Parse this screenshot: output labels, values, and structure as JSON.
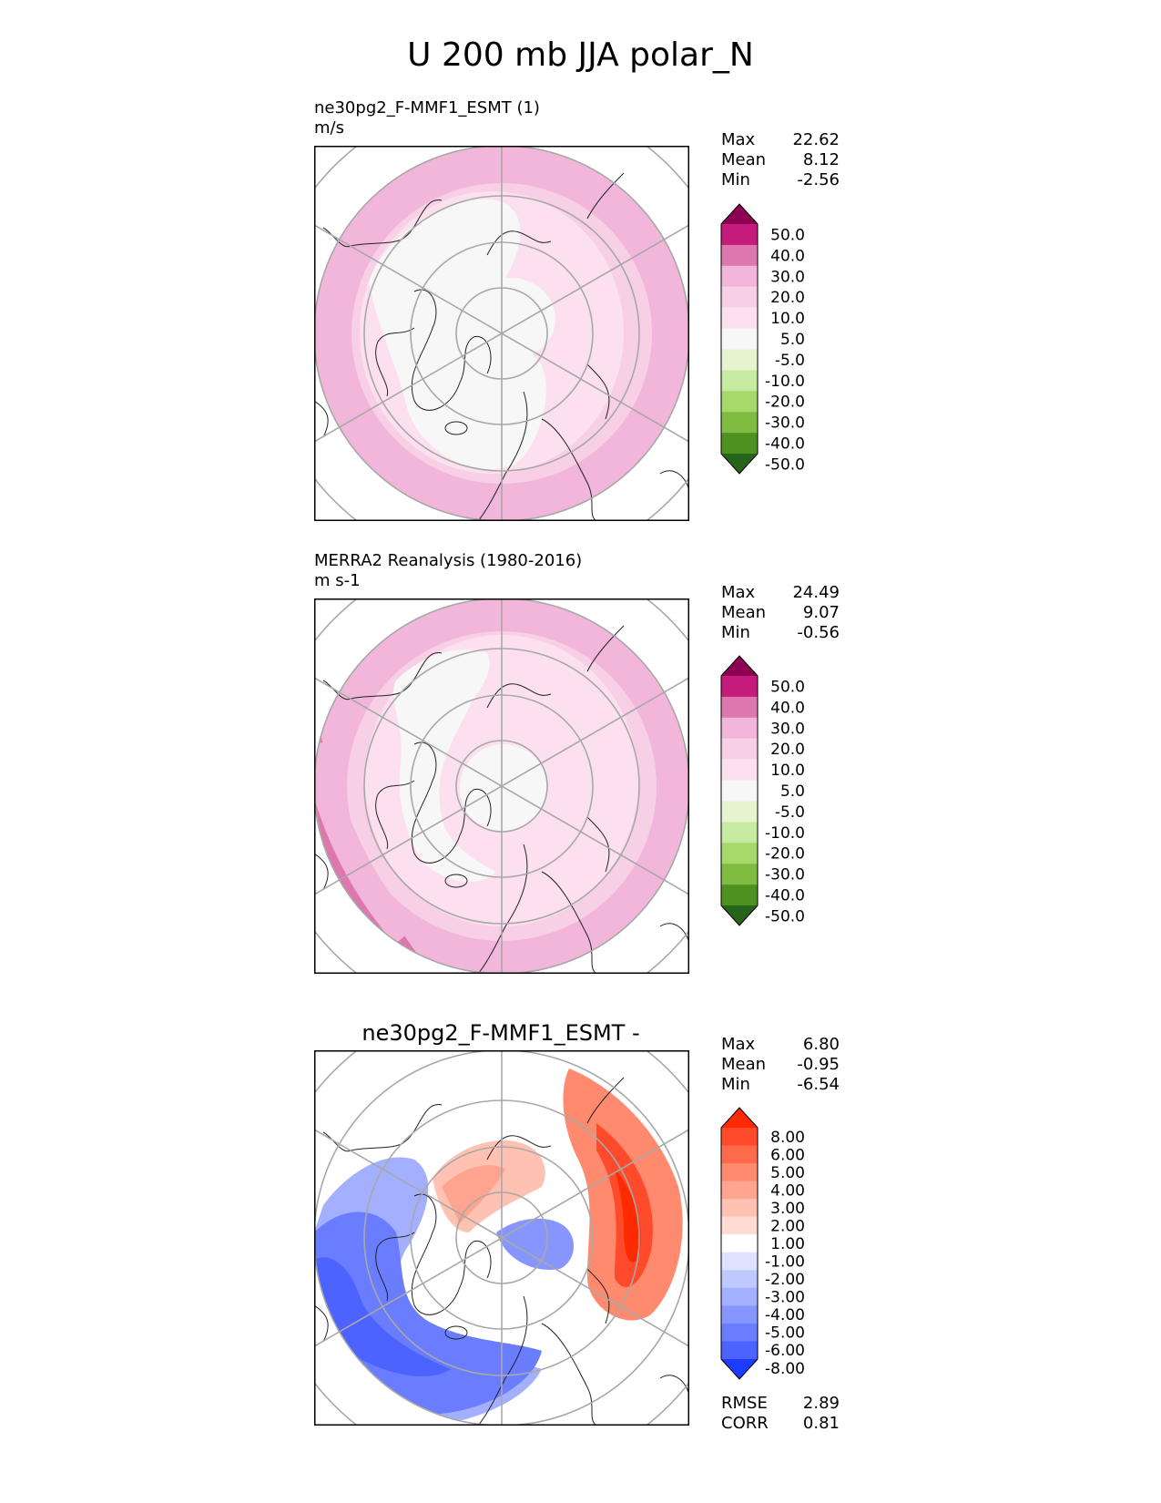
{
  "title": "U 200 mb JJA polar_N",
  "panels": [
    {
      "subtitle": "ne30pg2_F-MMF1_ESMT (1)",
      "units": "m/s",
      "stats": [
        {
          "label": "Max",
          "value": "22.62"
        },
        {
          "label": "Mean",
          "value": "8.12"
        },
        {
          "label": "Min",
          "value": "-2.56"
        }
      ]
    },
    {
      "subtitle": "MERRA2 Reanalysis (1980-2016)",
      "units": "m s-1",
      "stats": [
        {
          "label": "Max",
          "value": "24.49"
        },
        {
          "label": "Mean",
          "value": "9.07"
        },
        {
          "label": "Min",
          "value": "-0.56"
        }
      ]
    },
    {
      "title": "ne30pg2_F-MMF1_ESMT -",
      "stats": [
        {
          "label": "Max",
          "value": "6.80"
        },
        {
          "label": "Mean",
          "value": "-0.95"
        },
        {
          "label": "Min",
          "value": "-6.54"
        }
      ],
      "metrics": [
        {
          "label": "RMSE",
          "value": "2.89"
        },
        {
          "label": "CORR",
          "value": "0.81"
        }
      ]
    }
  ],
  "colorbars": {
    "field": {
      "ticks": [
        "50.0",
        "40.0",
        "30.0",
        "20.0",
        "10.0",
        "5.0",
        "-5.0",
        "-10.0",
        "-20.0",
        "-30.0",
        "-40.0",
        "-50.0"
      ],
      "colors": [
        "#8e0152",
        "#c51b7d",
        "#de77ae",
        "#f1b6da",
        "#f7d0e6",
        "#fde0ef",
        "#f7f7f7",
        "#e6f5d0",
        "#c7e9a0",
        "#a6d96a",
        "#7fbc41",
        "#4d9221",
        "#276419"
      ]
    },
    "diff": {
      "ticks": [
        "8.00",
        "6.00",
        "5.00",
        "4.00",
        "3.00",
        "2.00",
        "1.00",
        "-1.00",
        "-2.00",
        "-3.00",
        "-4.00",
        "-5.00",
        "-6.00",
        "-8.00"
      ],
      "colors": [
        "#ff2a00",
        "#ff4b2b",
        "#ff6a4c",
        "#ff8a6e",
        "#ffa58f",
        "#ffc1b2",
        "#ffdcd3",
        "#ffffff",
        "#dce2ff",
        "#c0c9ff",
        "#a3afff",
        "#8796ff",
        "#6a7cff",
        "#4d63ff",
        "#1a3dff"
      ]
    }
  },
  "chart_data": [
    {
      "type": "heatmap",
      "title": "ne30pg2_F-MMF1_ESMT (1)",
      "units": "m/s",
      "projection": "north polar stereographic",
      "max": 22.62,
      "mean": 8.12,
      "min": -2.56,
      "levels": [
        -50,
        -40,
        -30,
        -20,
        -10,
        -5,
        5,
        10,
        20,
        30,
        40,
        50
      ]
    },
    {
      "type": "heatmap",
      "title": "MERRA2 Reanalysis (1980-2016)",
      "units": "m s-1",
      "projection": "north polar stereographic",
      "max": 24.49,
      "mean": 9.07,
      "min": -0.56,
      "levels": [
        -50,
        -40,
        -30,
        -20,
        -10,
        -5,
        5,
        10,
        20,
        30,
        40,
        50
      ]
    },
    {
      "type": "heatmap",
      "title": "ne30pg2_F-MMF1_ESMT -",
      "projection": "north polar stereographic",
      "max": 6.8,
      "mean": -0.95,
      "min": -6.54,
      "rmse": 2.89,
      "corr": 0.81,
      "levels": [
        -8,
        -6,
        -5,
        -4,
        -3,
        -2,
        -1,
        1,
        2,
        3,
        4,
        5,
        6,
        8
      ]
    }
  ]
}
